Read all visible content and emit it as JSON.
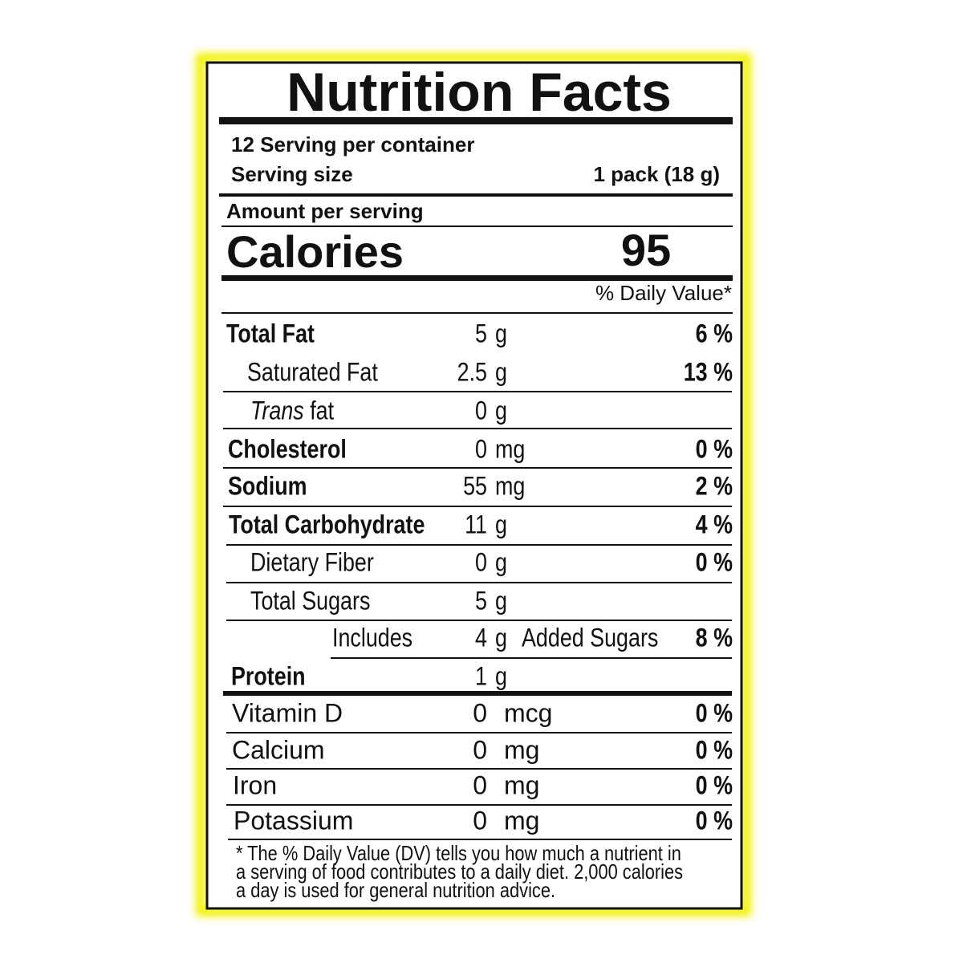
{
  "title": "Nutrition Facts",
  "servings": {
    "per_container": "12 Serving per container",
    "size_label": "Serving size",
    "size_value": "1 pack (18 g)"
  },
  "amount_per_serving": "Amount per serving",
  "calories": {
    "label": "Calories",
    "value": "95"
  },
  "daily_value_header": "% Daily Value*",
  "nutrients": [
    {
      "name": "Total Fat",
      "amount": "5",
      "unit": "g",
      "dv": "6 %"
    },
    {
      "name": "Saturated Fat",
      "amount": "2.5",
      "unit": "g",
      "dv": "13 %"
    },
    {
      "name_italic": "Trans",
      "name": "fat",
      "amount": "0",
      "unit": "g"
    },
    {
      "name": "Cholesterol",
      "amount": "0",
      "unit": "mg",
      "dv": "0 %"
    },
    {
      "name": "Sodium",
      "amount": "55",
      "unit": "mg",
      "dv": "2 %"
    },
    {
      "name": "Total Carbohydrate",
      "amount": "11",
      "unit": "g",
      "dv": "4 %"
    },
    {
      "name": "Dietary Fiber",
      "amount": "0",
      "unit": "g",
      "dv": "0 %"
    },
    {
      "name": "Total Sugars",
      "amount": "5",
      "unit": "g"
    },
    {
      "name": "Includes",
      "amount": "4",
      "unit": "g",
      "note": "Added Sugars",
      "dv": "8 %"
    },
    {
      "name": "Protein",
      "amount": "1",
      "unit": "g"
    },
    {
      "name": "Vitamin D",
      "amount": "0",
      "unit": "mcg",
      "dv": "0 %"
    },
    {
      "name": "Calcium",
      "amount": "0",
      "unit": "mg",
      "dv": "0 %"
    },
    {
      "name": "Iron",
      "amount": "0",
      "unit": "mg",
      "dv": "0 %"
    },
    {
      "name": "Potassium",
      "amount": "0",
      "unit": "mg",
      "dv": "0 %"
    }
  ],
  "footnote": [
    "* The % Daily Value (DV) tells you how much a nutrient in",
    "a serving of food contributes to a daily diet. 2,000 calories",
    "a day is used for general nutrition advice."
  ]
}
